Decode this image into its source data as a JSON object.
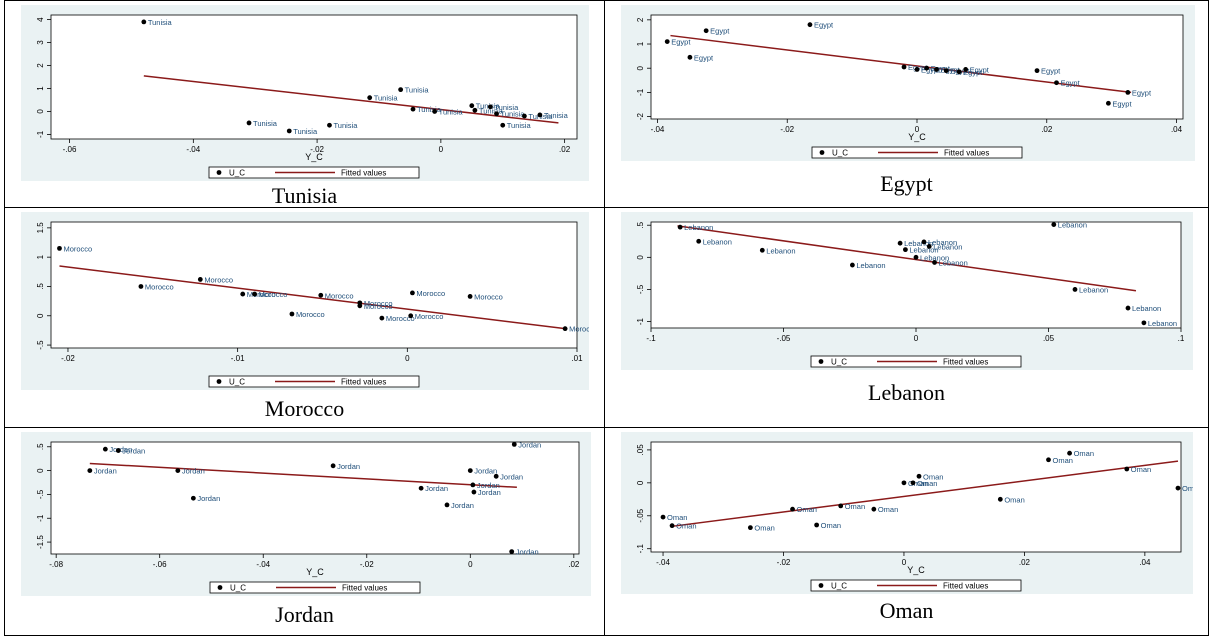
{
  "legend": {
    "scatter_label": "U_C",
    "line_label": "Fitted values"
  },
  "colors": {
    "panel_bg": "#eaf2f3",
    "plot_bg": "#ffffff",
    "line": "#8b1a1a",
    "point": "#000000",
    "label": "#1f4e79"
  },
  "charts": [
    {
      "caption": "Tunisia",
      "chart_data": {
        "type": "scatter",
        "title": "",
        "xlabel": "Y_C",
        "ylabel": "",
        "xlim": [
          -0.063,
          0.022
        ],
        "ylim": [
          -1.2,
          4.2
        ],
        "xticks": [
          {
            "v": -0.06,
            "l": "-.06"
          },
          {
            "v": -0.04,
            "l": "-.04"
          },
          {
            "v": -0.02,
            "l": "-.02"
          },
          {
            "v": 0,
            "l": "0"
          },
          {
            "v": 0.02,
            "l": ".02"
          }
        ],
        "yticks": [
          {
            "v": -1,
            "l": "-1"
          },
          {
            "v": 0,
            "l": "0"
          },
          {
            "v": 1,
            "l": "1"
          },
          {
            "v": 2,
            "l": "2"
          },
          {
            "v": 3,
            "l": "3"
          },
          {
            "v": 4,
            "l": "4"
          }
        ],
        "point_label": "Tunisia",
        "points": [
          [
            -0.048,
            3.9
          ],
          [
            -0.031,
            -0.5
          ],
          [
            -0.0245,
            -0.85
          ],
          [
            -0.018,
            -0.6
          ],
          [
            -0.0115,
            0.6
          ],
          [
            -0.0065,
            0.95
          ],
          [
            -0.0045,
            0.1
          ],
          [
            -0.001,
            0.0
          ],
          [
            0.005,
            0.25
          ],
          [
            0.0055,
            0.05
          ],
          [
            0.008,
            0.2
          ],
          [
            0.009,
            -0.1
          ],
          [
            0.01,
            -0.6
          ],
          [
            0.0135,
            -0.2
          ],
          [
            0.016,
            -0.15
          ]
        ],
        "fit": {
          "x": [
            -0.048,
            0.019
          ],
          "y": [
            1.55,
            -0.5
          ]
        }
      }
    },
    {
      "caption": "Egypt",
      "chart_data": {
        "type": "scatter",
        "title": "",
        "xlabel": "Y_C",
        "ylabel": "",
        "xlim": [
          -0.041,
          0.041
        ],
        "ylim": [
          -2.1,
          2.2
        ],
        "xticks": [
          {
            "v": -0.04,
            "l": "-.04"
          },
          {
            "v": -0.02,
            "l": "-.02"
          },
          {
            "v": 0,
            "l": "0"
          },
          {
            "v": 0.02,
            "l": ".02"
          },
          {
            "v": 0.04,
            "l": ".04"
          }
        ],
        "yticks": [
          {
            "v": -2,
            "l": "-2"
          },
          {
            "v": -1,
            "l": "-1"
          },
          {
            "v": 0,
            "l": "0"
          },
          {
            "v": 1,
            "l": "1"
          },
          {
            "v": 2,
            "l": "2"
          }
        ],
        "point_label": "Egypt",
        "points": [
          [
            -0.0385,
            1.1
          ],
          [
            -0.035,
            0.45
          ],
          [
            -0.0325,
            1.55
          ],
          [
            -0.0165,
            1.8
          ],
          [
            -0.002,
            0.05
          ],
          [
            0.0,
            -0.05
          ],
          [
            0.0015,
            0.0
          ],
          [
            0.003,
            -0.05
          ],
          [
            0.0045,
            -0.1
          ],
          [
            0.0065,
            -0.15
          ],
          [
            0.0075,
            -0.05
          ],
          [
            0.0185,
            -0.1
          ],
          [
            0.0215,
            -0.6
          ],
          [
            0.0325,
            -1.0
          ],
          [
            0.0295,
            -1.45
          ]
        ],
        "fit": {
          "x": [
            -0.038,
            0.033
          ],
          "y": [
            1.35,
            -1.0
          ]
        }
      }
    },
    {
      "caption": "Morocco",
      "chart_data": {
        "type": "scatter",
        "title": "",
        "xlabel": "",
        "ylabel": "",
        "xlim": [
          -0.021,
          0.01
        ],
        "ylim": [
          -0.55,
          1.6
        ],
        "xticks": [
          {
            "v": -0.02,
            "l": "-.02"
          },
          {
            "v": -0.01,
            "l": "-.01"
          },
          {
            "v": 0,
            "l": "0"
          },
          {
            "v": 0.01,
            "l": ".01"
          }
        ],
        "yticks": [
          {
            "v": -0.5,
            "l": "-.5"
          },
          {
            "v": 0,
            "l": "0"
          },
          {
            "v": 0.5,
            "l": ".5"
          },
          {
            "v": 1,
            "l": "1"
          },
          {
            "v": 1.5,
            "l": "1.5"
          }
        ],
        "point_label": "Morocco",
        "points": [
          [
            -0.0205,
            1.15
          ],
          [
            -0.0157,
            0.5
          ],
          [
            -0.0122,
            0.62
          ],
          [
            -0.0097,
            0.37
          ],
          [
            -0.009,
            0.37
          ],
          [
            -0.0068,
            0.03
          ],
          [
            -0.0051,
            0.35
          ],
          [
            -0.0028,
            0.22
          ],
          [
            -0.0028,
            0.17
          ],
          [
            -0.0015,
            -0.04
          ],
          [
            0.0003,
            0.39
          ],
          [
            0.0002,
            0.0
          ],
          [
            0.0037,
            0.33
          ],
          [
            0.0093,
            -0.22
          ]
        ],
        "fit": {
          "x": [
            -0.0205,
            0.0093
          ],
          "y": [
            0.85,
            -0.22
          ]
        }
      }
    },
    {
      "caption": "Lebanon",
      "chart_data": {
        "type": "scatter",
        "title": "",
        "xlabel": "",
        "ylabel": "",
        "xlim": [
          -0.1,
          0.1
        ],
        "ylim": [
          -1.1,
          0.55
        ],
        "xticks": [
          {
            "v": -0.1,
            "l": "-.1"
          },
          {
            "v": -0.05,
            "l": "-.05"
          },
          {
            "v": 0,
            "l": "0"
          },
          {
            "v": 0.05,
            "l": ".05"
          },
          {
            "v": 0.1,
            "l": ".1"
          }
        ],
        "yticks": [
          {
            "v": -1,
            "l": "-1"
          },
          {
            "v": -0.5,
            "l": "-.5"
          },
          {
            "v": 0,
            "l": "0"
          },
          {
            "v": 0.5,
            "l": ".5"
          }
        ],
        "point_label": "Lebanon",
        "points": [
          [
            -0.089,
            0.47
          ],
          [
            -0.082,
            0.25
          ],
          [
            -0.058,
            0.11
          ],
          [
            -0.024,
            -0.12
          ],
          [
            -0.006,
            0.22
          ],
          [
            -0.004,
            0.12
          ],
          [
            0.0,
            0.0
          ],
          [
            0.003,
            0.24
          ],
          [
            0.005,
            0.17
          ],
          [
            0.007,
            -0.08
          ],
          [
            0.052,
            0.51
          ],
          [
            0.06,
            -0.5
          ],
          [
            0.08,
            -0.79
          ],
          [
            0.086,
            -1.02
          ]
        ],
        "fit": {
          "x": [
            -0.09,
            0.083
          ],
          "y": [
            0.49,
            -0.52
          ]
        }
      }
    },
    {
      "caption": "Jordan",
      "chart_data": {
        "type": "scatter",
        "title": "",
        "xlabel": "Y_C",
        "ylabel": "",
        "xlim": [
          -0.081,
          0.021
        ],
        "ylim": [
          -1.75,
          0.6
        ],
        "xticks": [
          {
            "v": -0.08,
            "l": "-.08"
          },
          {
            "v": -0.06,
            "l": "-.06"
          },
          {
            "v": -0.04,
            "l": "-.04"
          },
          {
            "v": -0.02,
            "l": "-.02"
          },
          {
            "v": 0,
            "l": "0"
          },
          {
            "v": 0.02,
            "l": ".02"
          }
        ],
        "yticks": [
          {
            "v": -1.5,
            "l": "-1.5"
          },
          {
            "v": -1,
            "l": "-1"
          },
          {
            "v": -0.5,
            "l": "-.5"
          },
          {
            "v": 0,
            "l": "0"
          },
          {
            "v": 0.5,
            "l": ".5"
          }
        ],
        "point_label": "Jordan",
        "points": [
          [
            -0.0735,
            0.0
          ],
          [
            -0.0705,
            0.45
          ],
          [
            -0.068,
            0.42
          ],
          [
            -0.0565,
            0.0
          ],
          [
            -0.0535,
            -0.58
          ],
          [
            -0.0265,
            0.1
          ],
          [
            -0.0095,
            -0.37
          ],
          [
            -0.0045,
            -0.72
          ],
          [
            0.0,
            0.0
          ],
          [
            0.0005,
            -0.3
          ],
          [
            0.0007,
            -0.45
          ],
          [
            0.005,
            -0.12
          ],
          [
            0.0085,
            0.55
          ],
          [
            0.008,
            -1.7
          ]
        ],
        "fit": {
          "x": [
            -0.0735,
            0.009
          ],
          "y": [
            0.15,
            -0.35
          ]
        }
      }
    },
    {
      "caption": "Oman",
      "chart_data": {
        "type": "scatter",
        "title": "",
        "xlabel": "Y_C",
        "ylabel": "",
        "xlim": [
          -0.042,
          0.046
        ],
        "ylim": [
          -0.105,
          0.062
        ],
        "xticks": [
          {
            "v": -0.04,
            "l": "-.04"
          },
          {
            "v": -0.02,
            "l": "-.02"
          },
          {
            "v": 0,
            "l": "0"
          },
          {
            "v": 0.02,
            "l": ".02"
          },
          {
            "v": 0.04,
            "l": ".04"
          }
        ],
        "yticks": [
          {
            "v": -0.1,
            "l": "-.1"
          },
          {
            "v": -0.05,
            "l": "-.05"
          },
          {
            "v": 0,
            "l": "0"
          },
          {
            "v": 0.05,
            "l": ".05"
          }
        ],
        "point_label": "Oman",
        "points": [
          [
            -0.04,
            -0.052
          ],
          [
            -0.0385,
            -0.065
          ],
          [
            -0.0255,
            -0.068
          ],
          [
            -0.0185,
            -0.04
          ],
          [
            -0.0145,
            -0.064
          ],
          [
            -0.0105,
            -0.035
          ],
          [
            -0.005,
            -0.04
          ],
          [
            0.0,
            0.0
          ],
          [
            0.0015,
            0.0
          ],
          [
            0.0025,
            0.01
          ],
          [
            0.016,
            -0.025
          ],
          [
            0.024,
            0.035
          ],
          [
            0.0275,
            0.045
          ],
          [
            0.037,
            0.021
          ],
          [
            0.0455,
            -0.008
          ]
        ],
        "fit": {
          "x": [
            -0.0385,
            0.0455
          ],
          "y": [
            -0.066,
            0.033
          ]
        }
      }
    }
  ]
}
